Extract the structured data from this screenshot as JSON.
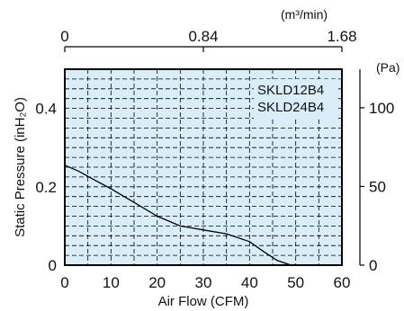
{
  "chart_data": {
    "type": "line",
    "xlabel": "Air Flow  (CFM)",
    "ylabel": "Static Pressure  (inH₂O)",
    "xlim": [
      0,
      60
    ],
    "ylim": [
      0,
      0.5
    ],
    "x_ticks": [
      "0",
      "10",
      "20",
      "30",
      "40",
      "50",
      "60"
    ],
    "y_ticks": [
      "0",
      "0.2",
      "0.4"
    ],
    "top_axis": {
      "label": "(m³/min)",
      "ticks": [
        "0",
        "0.84",
        "1.68"
      ],
      "range": [
        0,
        1.68
      ]
    },
    "right_axis": {
      "label": "(Pa)",
      "ticks": [
        "0",
        "50",
        "100"
      ],
      "range": [
        0,
        124.5
      ]
    },
    "series": [
      {
        "name": "SKLD12B4\nSKLD24B4",
        "x": [
          0,
          3,
          6,
          10,
          15,
          20,
          25,
          30,
          35,
          40,
          43,
          46,
          49
        ],
        "y": [
          0.255,
          0.24,
          0.22,
          0.195,
          0.16,
          0.125,
          0.1,
          0.09,
          0.08,
          0.06,
          0.035,
          0.012,
          0
        ]
      }
    ],
    "legend_lines": [
      "SKLD12B4",
      "SKLD24B4"
    ],
    "grid": true,
    "legend_position": "top-right",
    "colors": {
      "plot_background": "#daeef9",
      "curve": "#000000",
      "grid": "#000000"
    }
  }
}
